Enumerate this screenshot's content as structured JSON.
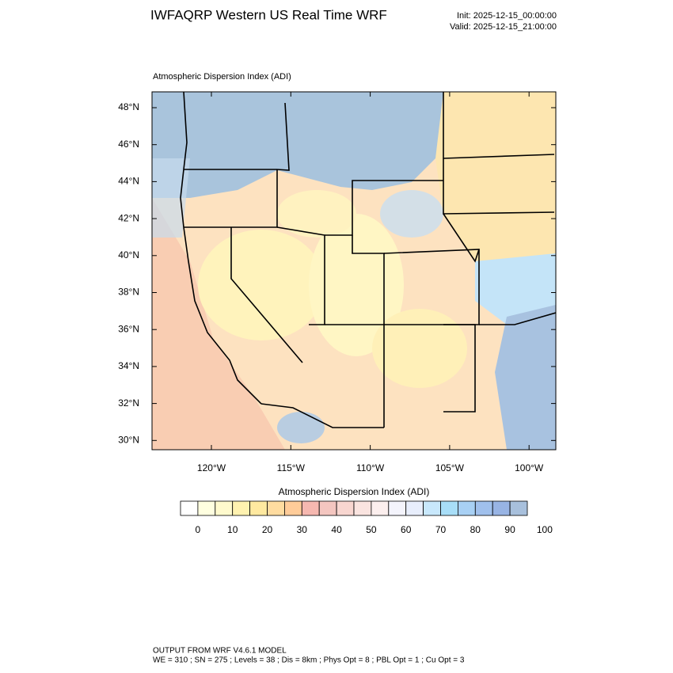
{
  "header": {
    "title": "IWFAQRP Western US Real Time WRF",
    "init": "Init: 2025-12-15_00:00:00",
    "valid": "Valid: 2025-12-15_21:00:00"
  },
  "map": {
    "subtitle": "Atmospheric Dispersion Index   (ADI)",
    "lat_labels": [
      "48°N",
      "46°N",
      "44°N",
      "42°N",
      "40°N",
      "38°N",
      "36°N",
      "34°N",
      "32°N",
      "30°N"
    ],
    "lon_labels": [
      "120°W",
      "115°W",
      "110°W",
      "105°W",
      "100°W"
    ]
  },
  "colorbar": {
    "title": "Atmospheric Dispersion Index  (ADI)",
    "labels": [
      0,
      10,
      20,
      30,
      40,
      50,
      60,
      70,
      80,
      90,
      100
    ],
    "colors": [
      "#ffffff",
      "#ffffe0",
      "#fffacd",
      "#fff2b0",
      "#ffe9a0",
      "#ffdca0",
      "#ffcc99",
      "#f6b8b0",
      "#f4c6c0",
      "#f8d6d0",
      "#fae4e0",
      "#fcefee",
      "#f4f4fc",
      "#e8eefc",
      "#c8e8fc",
      "#a8def8",
      "#a8d0f4",
      "#a0c0ec",
      "#98b4e4",
      "#a8c0dc"
    ]
  },
  "footer": {
    "line1": "OUTPUT FROM WRF V4.6.1 MODEL",
    "line2": "WE = 310 ; SN = 275 ; Levels = 38 ; Dis = 8km ; Phys Opt = 8 ; PBL Opt = 1 ; Cu Opt = 3"
  }
}
